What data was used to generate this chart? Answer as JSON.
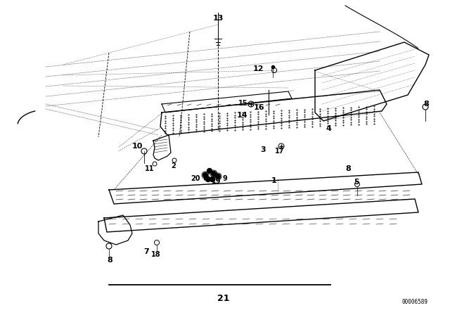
{
  "bg_color": "#ffffff",
  "line_color": "#000000",
  "fig_width": 6.4,
  "fig_height": 4.48,
  "dpi": 100,
  "bottom_label": "21",
  "bottom_code": "00006589"
}
